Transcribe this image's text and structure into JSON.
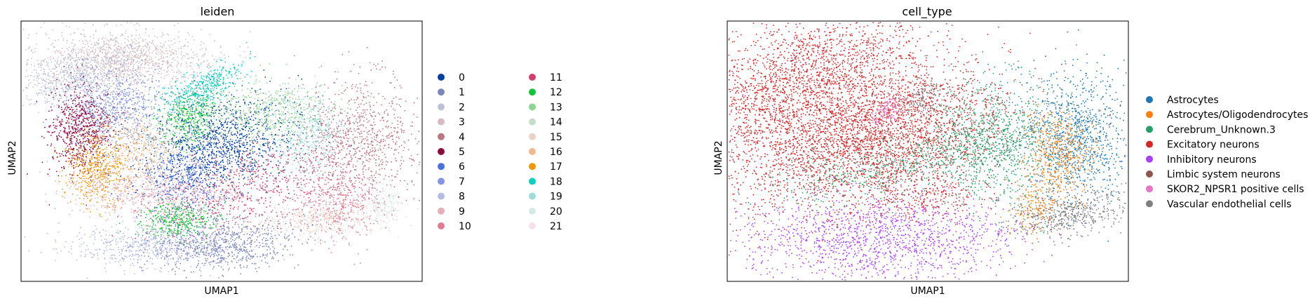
{
  "charts": [
    {
      "type": "scatter",
      "title": "leiden",
      "xlabel": "UMAP1",
      "ylabel": "UMAP2",
      "legend_position": "right",
      "legend_columns": 2,
      "categories": [
        {
          "label": "0",
          "color": "#023fa5"
        },
        {
          "label": "1",
          "color": "#7d87b9"
        },
        {
          "label": "2",
          "color": "#bec1d4"
        },
        {
          "label": "3",
          "color": "#d6bcc0"
        },
        {
          "label": "4",
          "color": "#bb7784"
        },
        {
          "label": "5",
          "color": "#8e063b"
        },
        {
          "label": "6",
          "color": "#4a6fe3"
        },
        {
          "label": "7",
          "color": "#8595e1"
        },
        {
          "label": "8",
          "color": "#b5bbe3"
        },
        {
          "label": "9",
          "color": "#e6afb9"
        },
        {
          "label": "10",
          "color": "#e07b91"
        },
        {
          "label": "11",
          "color": "#d33f6a"
        },
        {
          "label": "12",
          "color": "#11c638"
        },
        {
          "label": "13",
          "color": "#8dd593"
        },
        {
          "label": "14",
          "color": "#c6dec7"
        },
        {
          "label": "15",
          "color": "#ead3c6"
        },
        {
          "label": "16",
          "color": "#f0b98d"
        },
        {
          "label": "17",
          "color": "#ef9708"
        },
        {
          "label": "18",
          "color": "#0fcfc0"
        },
        {
          "label": "19",
          "color": "#9cded6"
        },
        {
          "label": "20",
          "color": "#d5eae7"
        },
        {
          "label": "21",
          "color": "#f3e1eb"
        }
      ]
    },
    {
      "type": "scatter",
      "title": "cell_type",
      "xlabel": "UMAP1",
      "ylabel": "UMAP2",
      "legend_position": "right",
      "legend_columns": 1,
      "categories": [
        {
          "label": "Astrocytes",
          "color": "#1f77b4"
        },
        {
          "label": "Astrocytes/Oligodendrocytes",
          "color": "#ff7f0e"
        },
        {
          "label": "Cerebrum_Unknown.3",
          "color": "#279e68"
        },
        {
          "label": "Excitatory neurons",
          "color": "#d62728"
        },
        {
          "label": "Inhibitory neurons",
          "color": "#aa40fc"
        },
        {
          "label": "Limbic system neurons",
          "color": "#8c564b"
        },
        {
          "label": "SKOR2_NPSR1 positive cells",
          "color": "#e377c2"
        },
        {
          "label": "Vascular endothelial cells",
          "color": "#7f7f7f"
        }
      ]
    }
  ]
}
